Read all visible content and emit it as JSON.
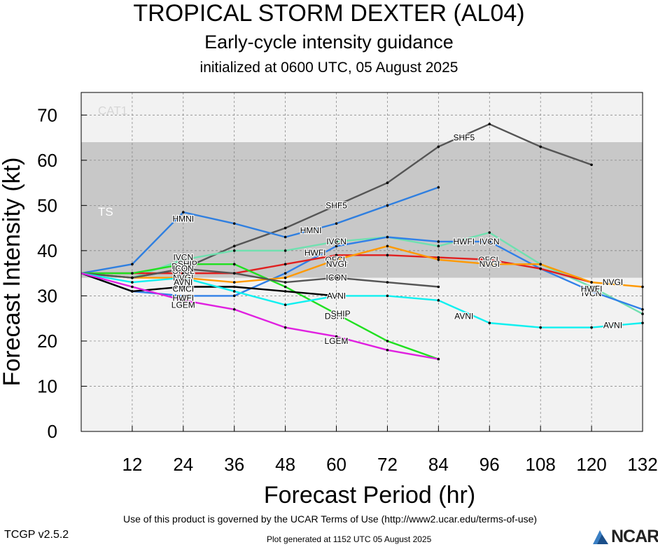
{
  "header": {
    "title": "TROPICAL STORM DEXTER (AL04)",
    "subtitle": "Early-cycle intensity guidance",
    "init_line": "initialized at 0600 UTC, 05 August 2025"
  },
  "footer": {
    "terms": "Use of this product is governed by the UCAR Terms of Use (http://www2.ucar.edu/terms-of-use)",
    "version": "TCGP v2.5.2",
    "generated": "Plot generated at 1152 UTC   05 August 2025",
    "logo_text": "NCAR"
  },
  "chart_data": {
    "type": "line",
    "xlabel": "Forecast Period (hr)",
    "ylabel": "Forecast Intensity (kt)",
    "xlim": [
      0,
      132
    ],
    "ylim": [
      0,
      75
    ],
    "xticks": [
      12,
      24,
      36,
      48,
      60,
      72,
      84,
      96,
      108,
      120,
      132
    ],
    "yticks": [
      0,
      10,
      20,
      30,
      40,
      50,
      60,
      70
    ],
    "bands": [
      {
        "label": "TS",
        "from": 34,
        "to": 64,
        "color": "#c8c8c8"
      },
      {
        "label": "CAT1",
        "from": 64,
        "to": 75,
        "color": "#f2f2f2"
      }
    ],
    "below_band_color": "#f2f2f2",
    "series": [
      {
        "name": "SHF5",
        "color": "#555555",
        "x": [
          0,
          12,
          24,
          36,
          48,
          60,
          72,
          84,
          96,
          108,
          120
        ],
        "y": [
          35,
          34,
          36,
          41,
          45,
          50,
          55,
          63,
          68,
          63,
          59
        ],
        "labels": [
          {
            "x": 60,
            "y": 50
          },
          {
            "x": 90,
            "y": 65
          }
        ]
      },
      {
        "name": "HMNI",
        "color": "#2f7fe0",
        "x": [
          0,
          12,
          24,
          36,
          48,
          60,
          72,
          84
        ],
        "y": [
          35,
          37,
          48.5,
          46,
          43,
          46,
          50,
          54
        ],
        "labels": [
          {
            "x": 24,
            "y": 47
          },
          {
            "x": 54,
            "y": 44.5
          }
        ]
      },
      {
        "name": "IVCN",
        "color": "#70e0b0",
        "x": [
          0,
          12,
          24,
          36,
          48,
          60,
          72,
          84,
          96,
          108,
          120,
          132
        ],
        "y": [
          35,
          34,
          38,
          40,
          40,
          42,
          43,
          41,
          44,
          37,
          32,
          26
        ],
        "labels": [
          {
            "x": 24,
            "y": 38.5
          },
          {
            "x": 60,
            "y": 42
          },
          {
            "x": 96,
            "y": 42
          },
          {
            "x": 120,
            "y": 30.5
          }
        ]
      },
      {
        "name": "HWFI",
        "color": "#3080e8",
        "x": [
          0,
          12,
          24,
          36,
          48,
          60,
          72,
          84,
          96,
          108,
          120,
          132
        ],
        "y": [
          35,
          31,
          30,
          30,
          35,
          41,
          43,
          42,
          42,
          36,
          31,
          27
        ],
        "labels": [
          {
            "x": 24,
            "y": 29.5
          },
          {
            "x": 55,
            "y": 39.5
          },
          {
            "x": 90,
            "y": 42
          },
          {
            "x": 120,
            "y": 31.5
          }
        ]
      },
      {
        "name": "OFCL",
        "color": "#e02020",
        "x": [
          0,
          12,
          24,
          36,
          48,
          60,
          72,
          84,
          96,
          108,
          120
        ],
        "y": [
          35,
          35,
          35,
          35,
          37,
          39,
          39,
          38.5,
          38,
          36,
          33
        ],
        "labels": [
          {
            "x": 24,
            "y": 35.5
          },
          {
            "x": 60,
            "y": 38
          },
          {
            "x": 96,
            "y": 38
          }
        ]
      },
      {
        "name": "NVGI",
        "color": "#ff9900",
        "x": [
          0,
          12,
          24,
          36,
          48,
          60,
          72,
          84,
          96,
          108,
          120,
          132
        ],
        "y": [
          35,
          34,
          34,
          33,
          34,
          38,
          41,
          38,
          37,
          37,
          33,
          32
        ],
        "labels": [
          {
            "x": 24,
            "y": 34
          },
          {
            "x": 60,
            "y": 37
          },
          {
            "x": 96,
            "y": 37
          },
          {
            "x": 125,
            "y": 33
          }
        ]
      },
      {
        "name": "DSHP",
        "color": "#20e020",
        "x": [
          0,
          12,
          24,
          36,
          48,
          60,
          72,
          84
        ],
        "y": [
          35,
          35,
          37,
          37,
          32,
          26,
          20,
          16
        ],
        "labels": [
          {
            "x": 24,
            "y": 36.5
          },
          {
            "x": 60,
            "y": 25.5
          }
        ]
      },
      {
        "name": "SHIP",
        "color": "#20e020",
        "x": [],
        "y": [],
        "labels": [
          {
            "x": 25,
            "y": 37
          },
          {
            "x": 61,
            "y": 26
          }
        ]
      },
      {
        "name": "ICON",
        "color": "#555555",
        "x": [
          0,
          12,
          24,
          36,
          48,
          60,
          72,
          84
        ],
        "y": [
          35,
          34,
          36,
          35,
          33,
          34,
          33,
          32
        ],
        "labels": [
          {
            "x": 24,
            "y": 36
          },
          {
            "x": 60,
            "y": 34
          }
        ]
      },
      {
        "name": "CMCI",
        "color": "#000000",
        "x": [
          0,
          12,
          24,
          36,
          48,
          60
        ],
        "y": [
          35,
          31,
          32,
          32,
          31,
          30
        ],
        "labels": [
          {
            "x": 24,
            "y": 31.5
          }
        ]
      },
      {
        "name": "AVNI",
        "color": "#10f0f0",
        "x": [
          0,
          12,
          24,
          36,
          48,
          60,
          72,
          84,
          96,
          108,
          120,
          132
        ],
        "y": [
          35,
          33,
          34,
          31,
          28,
          30,
          30,
          29,
          24,
          23,
          23,
          24
        ],
        "labels": [
          {
            "x": 24,
            "y": 33
          },
          {
            "x": 60,
            "y": 30
          },
          {
            "x": 90,
            "y": 25.5
          },
          {
            "x": 125,
            "y": 23.5
          }
        ]
      },
      {
        "name": "LGEM",
        "color": "#e020e0",
        "x": [
          0,
          12,
          24,
          36,
          48,
          60,
          72,
          84
        ],
        "y": [
          35,
          32,
          29,
          27,
          23,
          21,
          18,
          16
        ],
        "labels": [
          {
            "x": 24,
            "y": 28
          },
          {
            "x": 60,
            "y": 20
          }
        ]
      }
    ]
  }
}
